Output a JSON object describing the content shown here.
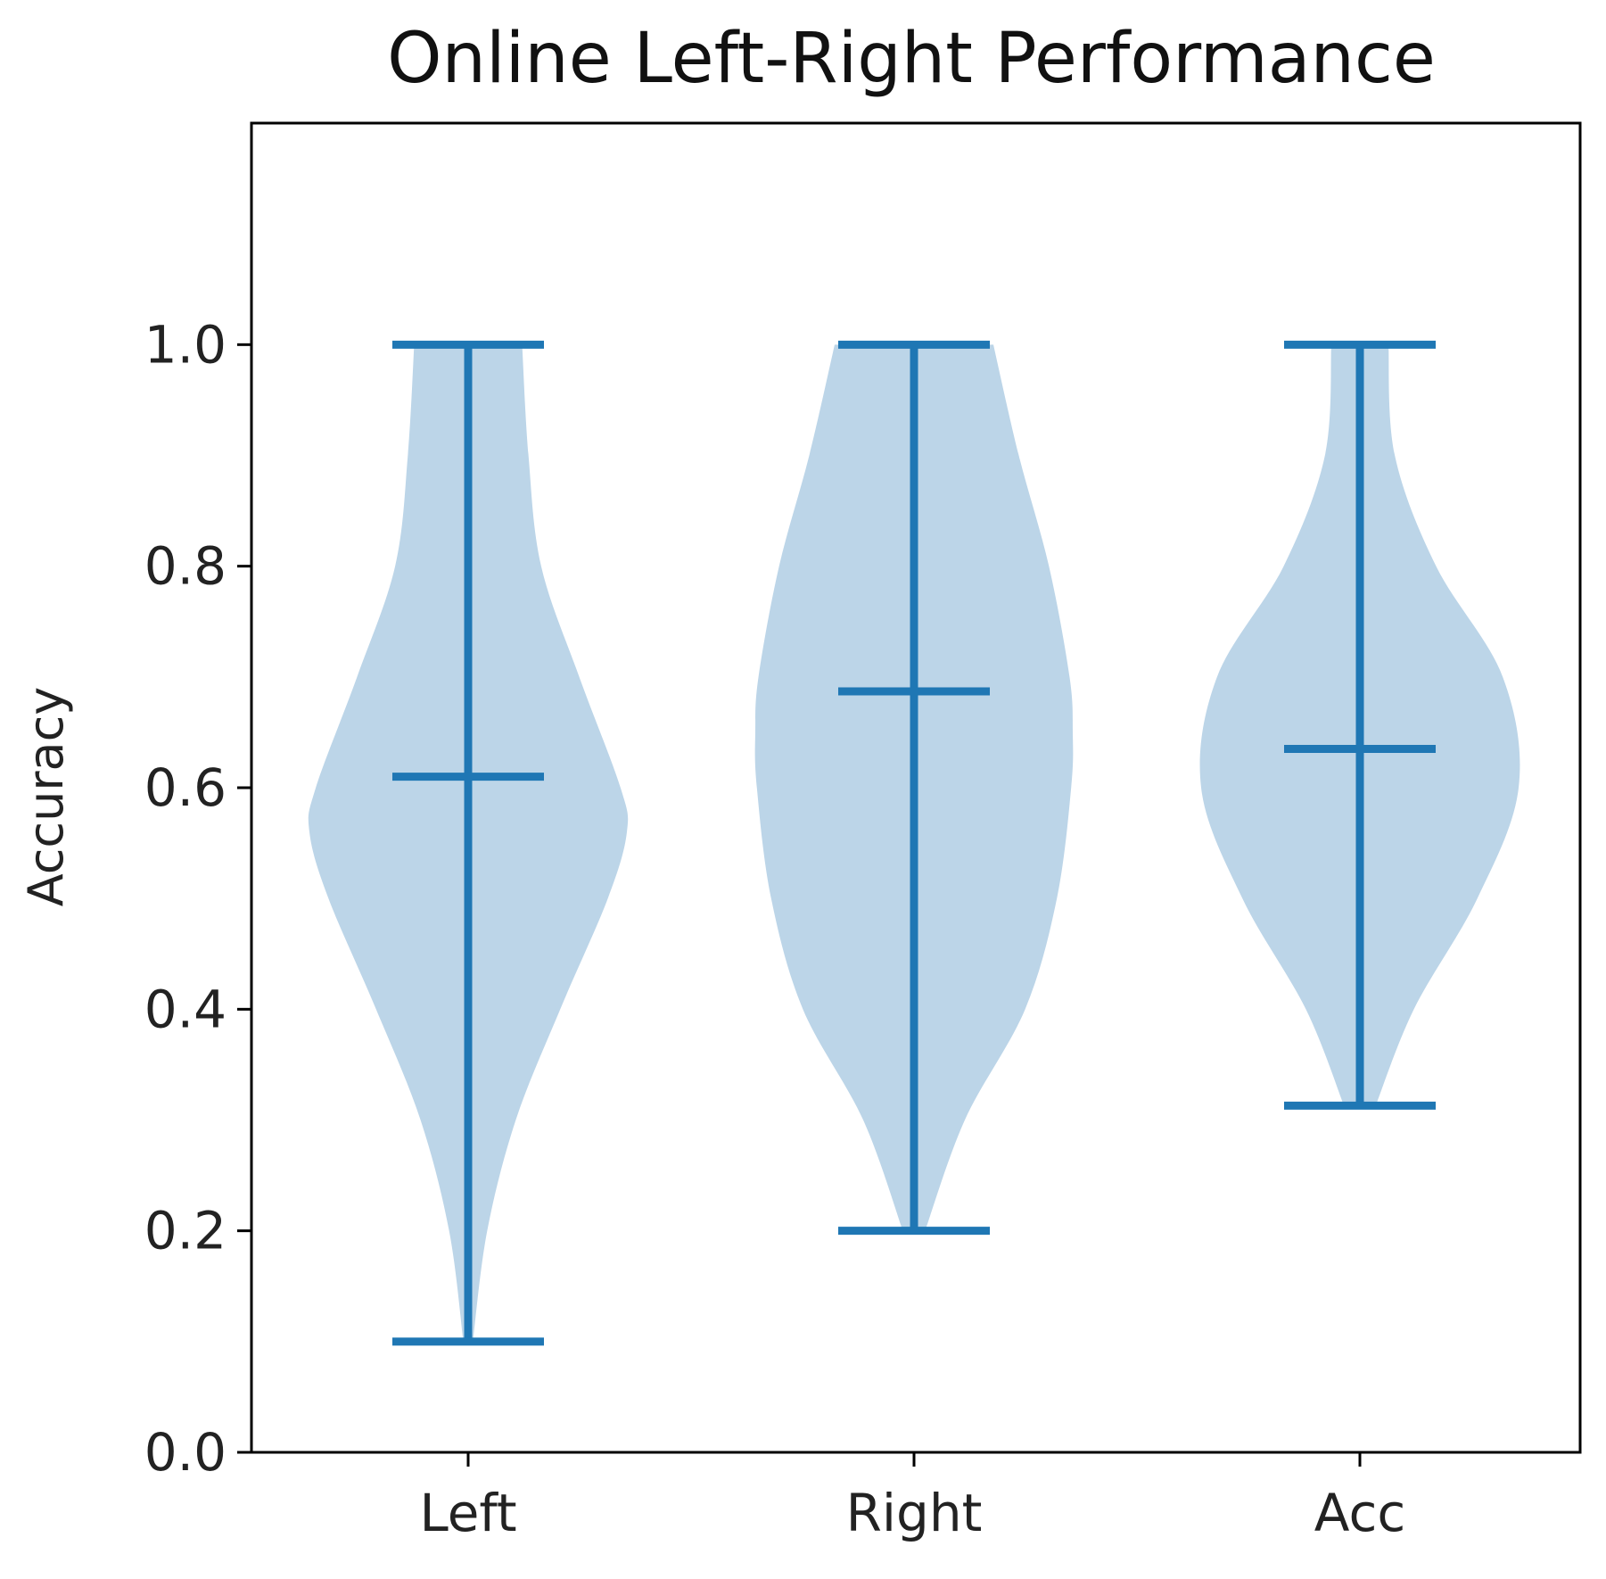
{
  "chart_data": {
    "type": "violin",
    "title": "Online Left-Right Performance",
    "xlabel": "",
    "ylabel": "Accuracy",
    "ylim": [
      0.0,
      1.2
    ],
    "yticks": [
      "0.0",
      "0.2",
      "0.4",
      "0.6",
      "0.8",
      "1.0"
    ],
    "categories": [
      "Left",
      "Right",
      "Acc"
    ],
    "color": "#1f77b4",
    "fill_color": "#bcd5e8",
    "grid": false,
    "violins": [
      {
        "label": "Left",
        "min": 0.1,
        "max": 1.0,
        "mean": 0.61,
        "density": [
          [
            0.1,
            0.03
          ],
          [
            0.2,
            0.12
          ],
          [
            0.3,
            0.3
          ],
          [
            0.4,
            0.58
          ],
          [
            0.5,
            0.88
          ],
          [
            0.56,
            1.0
          ],
          [
            0.6,
            0.96
          ],
          [
            0.7,
            0.7
          ],
          [
            0.8,
            0.46
          ],
          [
            0.9,
            0.38
          ],
          [
            1.0,
            0.34
          ]
        ]
      },
      {
        "label": "Right",
        "min": 0.2,
        "max": 1.0,
        "mean": 0.687,
        "density": [
          [
            0.2,
            0.07
          ],
          [
            0.3,
            0.32
          ],
          [
            0.4,
            0.7
          ],
          [
            0.5,
            0.9
          ],
          [
            0.6,
            0.99
          ],
          [
            0.65,
            1.0
          ],
          [
            0.7,
            0.98
          ],
          [
            0.8,
            0.85
          ],
          [
            0.9,
            0.66
          ],
          [
            1.0,
            0.5
          ]
        ]
      },
      {
        "label": "Acc",
        "min": 0.313,
        "max": 1.0,
        "mean": 0.635,
        "density": [
          [
            0.313,
            0.1
          ],
          [
            0.4,
            0.34
          ],
          [
            0.5,
            0.74
          ],
          [
            0.6,
            1.0
          ],
          [
            0.7,
            0.9
          ],
          [
            0.8,
            0.48
          ],
          [
            0.9,
            0.22
          ],
          [
            1.0,
            0.18
          ]
        ]
      }
    ]
  }
}
